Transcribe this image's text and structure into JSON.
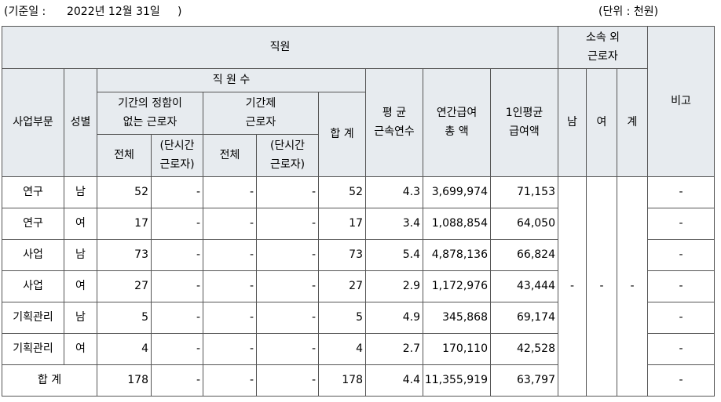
{
  "caption": {
    "date": "(기준일 :      2022년 12월 31일     )",
    "unit": "(단위 : 천원)"
  },
  "headers": {
    "staff": "직원",
    "outsourced": "소속 외\n근로자",
    "note": "비고",
    "division": "사업부문",
    "gender": "성별",
    "headcount": "직 원 수",
    "permanent": "기간의 정함이\n없는 근로자",
    "fixed_term": "기간제\n근로자",
    "total_count": "합 계",
    "avg_tenure": "평 균\n근속연수",
    "annual_pay": "연간급여\n총 액",
    "avg_pay": "1인평균\n급여액",
    "male": "남",
    "female": "여",
    "sum": "계",
    "all": "전체",
    "part_time": "(단시간\n근로자)"
  },
  "rows": [
    {
      "division": "연구",
      "gender": "남",
      "perm_total": "52",
      "perm_part": "-",
      "fixed_total": "-",
      "fixed_part": "-",
      "total": "52",
      "tenure": "4.3",
      "annual_pay": "3,699,974",
      "avg_pay": "71,153",
      "note": "-"
    },
    {
      "division": "연구",
      "gender": "여",
      "perm_total": "17",
      "perm_part": "-",
      "fixed_total": "-",
      "fixed_part": "-",
      "total": "17",
      "tenure": "3.4",
      "annual_pay": "1,088,854",
      "avg_pay": "64,050",
      "note": "-"
    },
    {
      "division": "사업",
      "gender": "남",
      "perm_total": "73",
      "perm_part": "-",
      "fixed_total": "-",
      "fixed_part": "-",
      "total": "73",
      "tenure": "5.4",
      "annual_pay": "4,878,136",
      "avg_pay": "66,824",
      "note": "-"
    },
    {
      "division": "사업",
      "gender": "여",
      "perm_total": "27",
      "perm_part": "-",
      "fixed_total": "-",
      "fixed_part": "-",
      "total": "27",
      "tenure": "2.9",
      "annual_pay": "1,172,976",
      "avg_pay": "43,444",
      "note": "-"
    },
    {
      "division": "기획관리",
      "gender": "남",
      "perm_total": "5",
      "perm_part": "-",
      "fixed_total": "-",
      "fixed_part": "-",
      "total": "5",
      "tenure": "4.9",
      "annual_pay": "345,868",
      "avg_pay": "69,174",
      "note": "-"
    },
    {
      "division": "기획관리",
      "gender": "여",
      "perm_total": "4",
      "perm_part": "-",
      "fixed_total": "-",
      "fixed_part": "-",
      "total": "4",
      "tenure": "2.7",
      "annual_pay": "170,110",
      "avg_pay": "42,528",
      "note": "-"
    }
  ],
  "outsourced_values": {
    "male": "-",
    "female": "-",
    "sum": "-"
  },
  "total_row": {
    "label": "합 계",
    "perm_total": "178",
    "perm_part": "-",
    "fixed_total": "-",
    "fixed_part": "-",
    "total": "178",
    "tenure": "4.4",
    "annual_pay": "11,355,919",
    "avg_pay": "63,797",
    "note": "-"
  }
}
